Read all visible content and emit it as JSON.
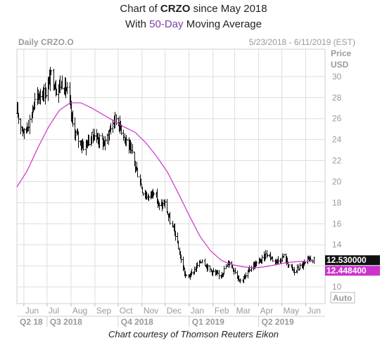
{
  "header": {
    "line1_prefix": "Chart of ",
    "line1_ticker": "CRZO",
    "line1_suffix": " since May 2018",
    "line2_prefix": "With ",
    "line2_ma": "50-Day",
    "line2_suffix": " Moving Average"
  },
  "footer": {
    "credit": "Chart courtesy of Thomson Reuters Eikon"
  },
  "chart_data": {
    "type": "bar",
    "subtype": "ohlc",
    "label_left": "Daily CRZO.O",
    "date_range": "5/23/2018 - 6/11/2019 (EST)",
    "ylabel": [
      "Price",
      "USD"
    ],
    "auto_label": "Auto",
    "ylim": [
      8.4,
      32.6
    ],
    "yticks": [
      10,
      12,
      14,
      16,
      18,
      20,
      22,
      24,
      26,
      28,
      30
    ],
    "grid": true,
    "month_ticks": [
      "Jun",
      "Jul",
      "Aug",
      "Sep",
      "Oct",
      "Nov",
      "Dec",
      "Jan",
      "Feb",
      "Mar",
      "Apr",
      "May",
      "Jun"
    ],
    "quarter_ticks": [
      "Q2 18",
      "Q3 2018",
      "Q4 2018",
      "Q1 2019",
      "Q2 2019"
    ],
    "last_price": "12.530000",
    "ma_value": "12.448400",
    "colors": {
      "price": "#111111",
      "ma": "#cc33cc",
      "grid": "#dddddd",
      "axis_text": "#9a9a9a"
    },
    "price_anchors": [
      [
        "2018-05-23",
        26.5
      ],
      [
        "2018-06-01",
        24.6
      ],
      [
        "2018-06-08",
        25.8
      ],
      [
        "2018-06-15",
        27.6
      ],
      [
        "2018-06-22",
        28.4
      ],
      [
        "2018-06-29",
        28.5
      ],
      [
        "2018-07-06",
        30.2
      ],
      [
        "2018-07-13",
        28.8
      ],
      [
        "2018-07-20",
        29.4
      ],
      [
        "2018-07-27",
        28.6
      ],
      [
        "2018-08-03",
        25.4
      ],
      [
        "2018-08-10",
        24.0
      ],
      [
        "2018-08-17",
        23.4
      ],
      [
        "2018-08-24",
        23.9
      ],
      [
        "2018-08-31",
        24.5
      ],
      [
        "2018-09-07",
        24.0
      ],
      [
        "2018-09-14",
        23.6
      ],
      [
        "2018-09-21",
        25.2
      ],
      [
        "2018-09-28",
        26.1
      ],
      [
        "2018-10-05",
        25.0
      ],
      [
        "2018-10-12",
        23.9
      ],
      [
        "2018-10-19",
        22.5
      ],
      [
        "2018-10-26",
        20.8
      ],
      [
        "2018-11-02",
        19.0
      ],
      [
        "2018-11-09",
        18.5
      ],
      [
        "2018-11-16",
        19.2
      ],
      [
        "2018-11-23",
        17.6
      ],
      [
        "2018-11-30",
        17.9
      ],
      [
        "2018-12-07",
        16.2
      ],
      [
        "2018-12-14",
        15.0
      ],
      [
        "2018-12-21",
        12.5
      ],
      [
        "2018-12-28",
        10.9
      ],
      [
        "2019-01-04",
        11.2
      ],
      [
        "2019-01-11",
        12.0
      ],
      [
        "2019-01-18",
        12.6
      ],
      [
        "2019-01-25",
        11.8
      ],
      [
        "2019-02-01",
        11.4
      ],
      [
        "2019-02-08",
        11.0
      ],
      [
        "2019-02-15",
        11.6
      ],
      [
        "2019-02-22",
        12.4
      ],
      [
        "2019-03-01",
        11.5
      ],
      [
        "2019-03-08",
        10.6
      ],
      [
        "2019-03-15",
        11.0
      ],
      [
        "2019-03-22",
        11.9
      ],
      [
        "2019-03-29",
        12.2
      ],
      [
        "2019-04-05",
        12.6
      ],
      [
        "2019-04-12",
        13.2
      ],
      [
        "2019-04-19",
        12.6
      ],
      [
        "2019-04-26",
        12.5
      ],
      [
        "2019-05-03",
        12.9
      ],
      [
        "2019-05-10",
        12.1
      ],
      [
        "2019-05-17",
        11.4
      ],
      [
        "2019-05-24",
        11.9
      ],
      [
        "2019-05-31",
        12.2
      ],
      [
        "2019-06-07",
        12.7
      ],
      [
        "2019-06-11",
        12.53
      ]
    ],
    "ma_anchors": [
      [
        "2018-05-23",
        19.5
      ],
      [
        "2018-06-05",
        21.0
      ],
      [
        "2018-06-19",
        23.2
      ],
      [
        "2018-07-03",
        25.2
      ],
      [
        "2018-07-17",
        26.8
      ],
      [
        "2018-07-31",
        27.5
      ],
      [
        "2018-08-14",
        27.5
      ],
      [
        "2018-08-28",
        27.0
      ],
      [
        "2018-09-11",
        26.4
      ],
      [
        "2018-09-25",
        25.8
      ],
      [
        "2018-10-09",
        25.2
      ],
      [
        "2018-10-23",
        24.7
      ],
      [
        "2018-11-06",
        23.7
      ],
      [
        "2018-11-20",
        22.4
      ],
      [
        "2018-12-04",
        20.9
      ],
      [
        "2018-12-18",
        18.9
      ],
      [
        "2019-01-01",
        16.8
      ],
      [
        "2019-01-15",
        14.8
      ],
      [
        "2019-01-29",
        13.4
      ],
      [
        "2019-02-12",
        12.5
      ],
      [
        "2019-02-26",
        12.1
      ],
      [
        "2019-03-12",
        11.9
      ],
      [
        "2019-03-26",
        11.8
      ],
      [
        "2019-04-09",
        11.9
      ],
      [
        "2019-04-23",
        12.1
      ],
      [
        "2019-05-07",
        12.3
      ],
      [
        "2019-05-21",
        12.4
      ],
      [
        "2019-06-11",
        12.45
      ]
    ]
  }
}
